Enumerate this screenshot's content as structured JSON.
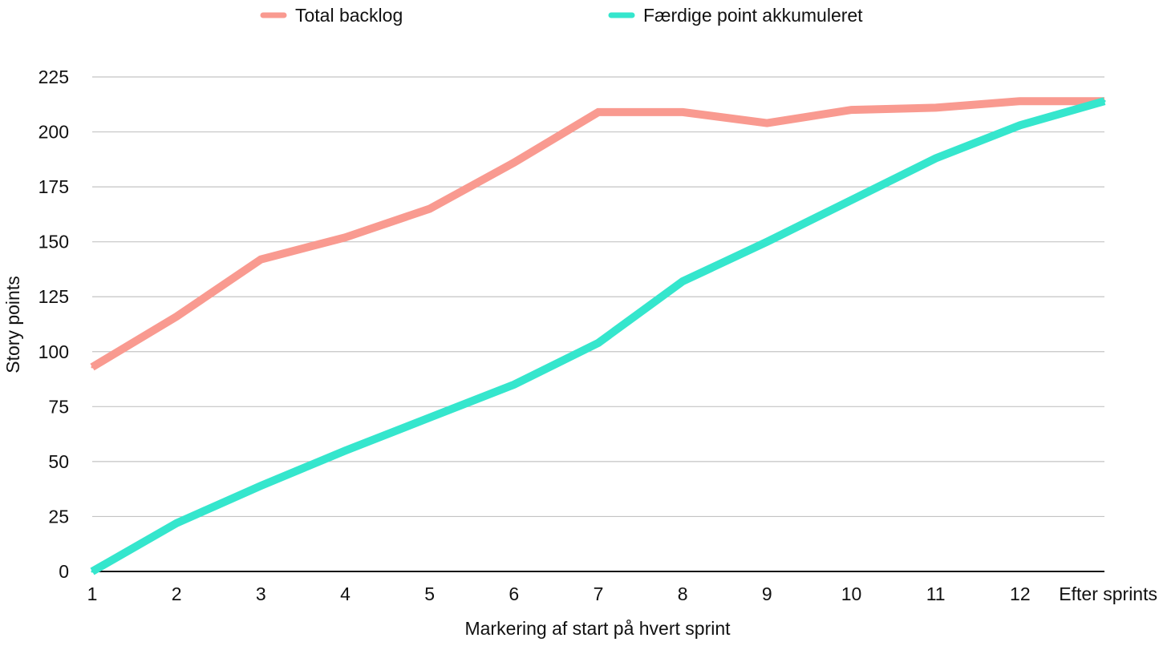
{
  "chart_data": {
    "type": "line",
    "title": "",
    "xlabel": "Markering af start på hvert sprint",
    "ylabel": "Story points",
    "categories": [
      "1",
      "2",
      "3",
      "4",
      "5",
      "6",
      "7",
      "8",
      "9",
      "10",
      "11",
      "12",
      "Efter sprints"
    ],
    "ylim": [
      0,
      225
    ],
    "yticks": [
      0,
      25,
      50,
      75,
      100,
      125,
      150,
      175,
      200,
      225
    ],
    "grid": true,
    "legend_position": "top",
    "series": [
      {
        "name": "Total backlog",
        "color": "#f99a90",
        "values": [
          93,
          116,
          142,
          152,
          165,
          186,
          209,
          209,
          204,
          210,
          211,
          214,
          214
        ]
      },
      {
        "name": "Færdige point akkumuleret",
        "color": "#35e6cd",
        "values": [
          0,
          22,
          39,
          55,
          70,
          85,
          104,
          132,
          150,
          169,
          188,
          203,
          214
        ]
      }
    ]
  }
}
